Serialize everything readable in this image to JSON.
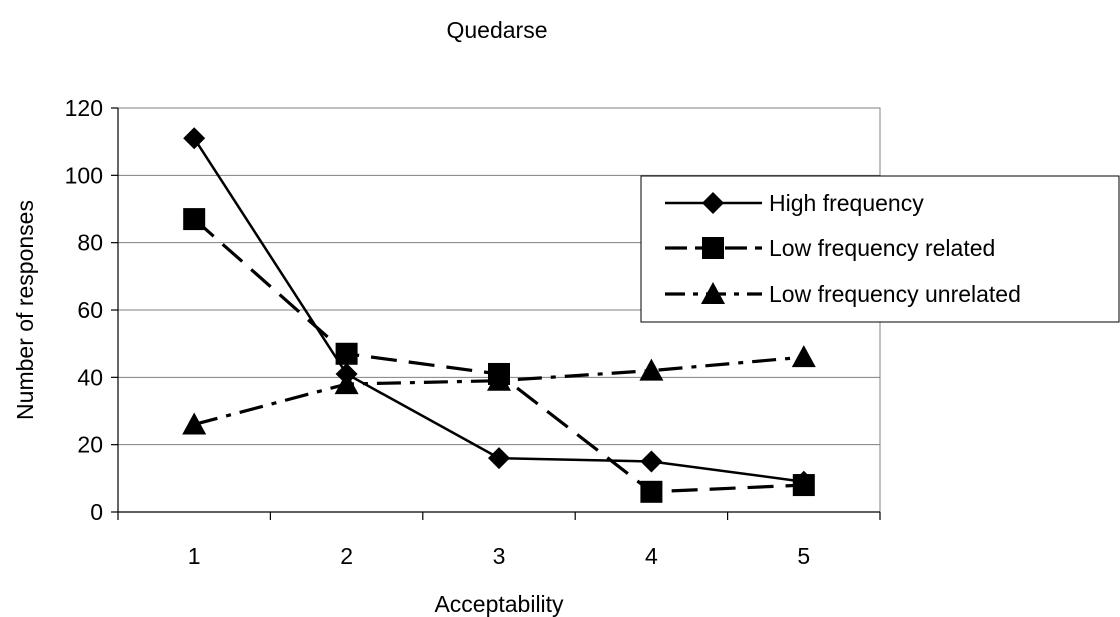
{
  "chart_data": {
    "type": "line",
    "title": "Quedarse",
    "xlabel": "Acceptability",
    "ylabel": "Number of responses",
    "categories": [
      "1",
      "2",
      "3",
      "4",
      "5"
    ],
    "ylim": [
      0,
      120
    ],
    "yticks": [
      "0",
      "20",
      "40",
      "60",
      "80",
      "100",
      "120"
    ],
    "grid": true,
    "legend_position": "right",
    "series": [
      {
        "name": "High frequency",
        "values": [
          111,
          41,
          16,
          15,
          9
        ],
        "marker": "diamond",
        "dash": "solid",
        "color": "#000000"
      },
      {
        "name": "Low frequency related",
        "values": [
          87,
          47,
          41,
          6,
          8
        ],
        "marker": "square",
        "dash": "dashed",
        "color": "#000000"
      },
      {
        "name": "Low frequency unrelated",
        "values": [
          26,
          38,
          39,
          42,
          46
        ],
        "marker": "triangle",
        "dash": "dash-dot",
        "color": "#000000"
      }
    ]
  }
}
